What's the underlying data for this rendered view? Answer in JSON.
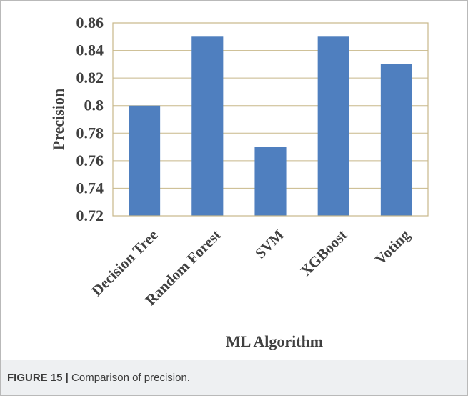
{
  "caption": {
    "label": "FIGURE 15 |",
    "text": " Comparison of precision."
  },
  "colors": {
    "bar": "#4f7fbf",
    "gridline": "#c8b88a",
    "plot_border": "#c8b88a",
    "text": "#404040",
    "caption_band": "#eef0f2"
  },
  "chart_data": {
    "type": "bar",
    "title": "",
    "xlabel": "ML Algorithm",
    "ylabel": "Precision",
    "categories": [
      "Decision Tree",
      "Random Forest",
      "SVM",
      "XGBoost",
      "Voting"
    ],
    "values": [
      0.8,
      0.85,
      0.77,
      0.85,
      0.83
    ],
    "ylim": [
      0.72,
      0.86
    ],
    "yticks": [
      "0.72",
      "0.74",
      "0.76",
      "0.78",
      "0.8",
      "0.82",
      "0.84",
      "0.86"
    ],
    "grid": true,
    "legend": "none"
  }
}
